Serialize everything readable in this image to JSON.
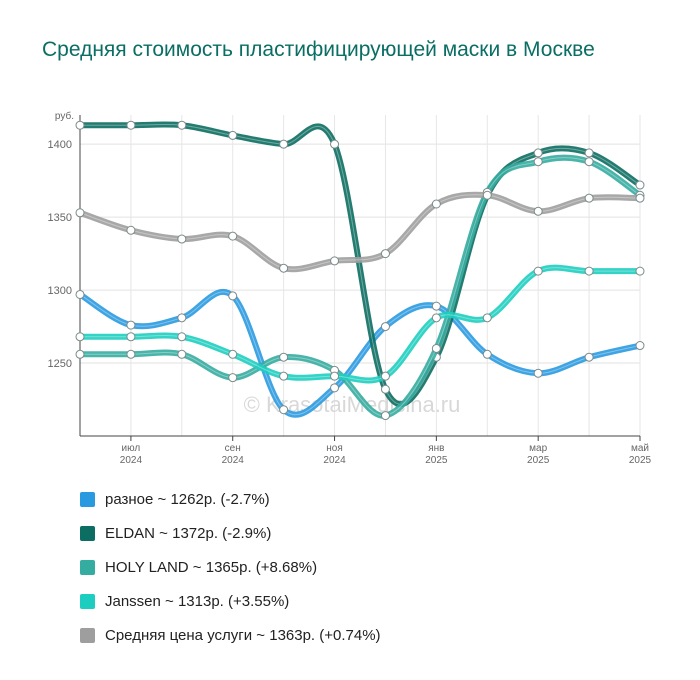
{
  "title": "Средняя стоимость пластифицирующей маски в Москве",
  "watermark": "© KrasotaiMedicina.ru",
  "chart_data": {
    "type": "line",
    "ylabel": "руб.",
    "ylim": [
      1200,
      1420
    ],
    "yticks": [
      1250,
      1300,
      1350,
      1400
    ],
    "x": [
      "2024-06",
      "2024-07",
      "2024-08",
      "2024-09",
      "2024-10",
      "2024-11",
      "2024-12",
      "2025-01",
      "2025-02",
      "2025-03",
      "2025-04",
      "2025-05"
    ],
    "xtick_labels": [
      {
        "month": "июл",
        "year": "2024",
        "index": 1
      },
      {
        "month": "сен",
        "year": "2024",
        "index": 3
      },
      {
        "month": "ноя",
        "year": "2024",
        "index": 5
      },
      {
        "month": "янв",
        "year": "2025",
        "index": 7
      },
      {
        "month": "мар",
        "year": "2025",
        "index": 9
      },
      {
        "month": "май",
        "year": "2025",
        "index": 11
      }
    ],
    "series": [
      {
        "name": "разное",
        "color": "#2a9ae0",
        "legend": "разное ~ 1262р. (-2.7%)",
        "values": [
          1297,
          1276,
          1281,
          1296,
          1218,
          1233,
          1275,
          1289,
          1256,
          1243,
          1254,
          1262
        ]
      },
      {
        "name": "ELDAN",
        "color": "#0c6e62",
        "legend": "ELDAN ~ 1372р. (-2.9%)",
        "values": [
          1413,
          1413,
          1413,
          1406,
          1400,
          1400,
          1232,
          1254,
          1365,
          1394,
          1394,
          1372
        ]
      },
      {
        "name": "HOLY LAND",
        "color": "#35aca0",
        "legend": "HOLY LAND ~ 1365р. (+8.68%)",
        "values": [
          1256,
          1256,
          1256,
          1240,
          1254,
          1245,
          1214,
          1260,
          1367,
          1388,
          1388,
          1365
        ]
      },
      {
        "name": "Janssen",
        "color": "#1dcec0",
        "legend": "Janssen ~ 1313р. (+3.55%)",
        "values": [
          1268,
          1268,
          1268,
          1256,
          1241,
          1241,
          1241,
          1281,
          1281,
          1313,
          1313,
          1313
        ]
      },
      {
        "name": "Средняя цена услуги",
        "color": "#9e9e9e",
        "legend": "Средняя цена услуги ~ 1363р. (+0.74%)",
        "values": [
          1353,
          1341,
          1335,
          1337,
          1315,
          1320,
          1325,
          1359,
          1365,
          1354,
          1363,
          1363
        ]
      }
    ]
  }
}
